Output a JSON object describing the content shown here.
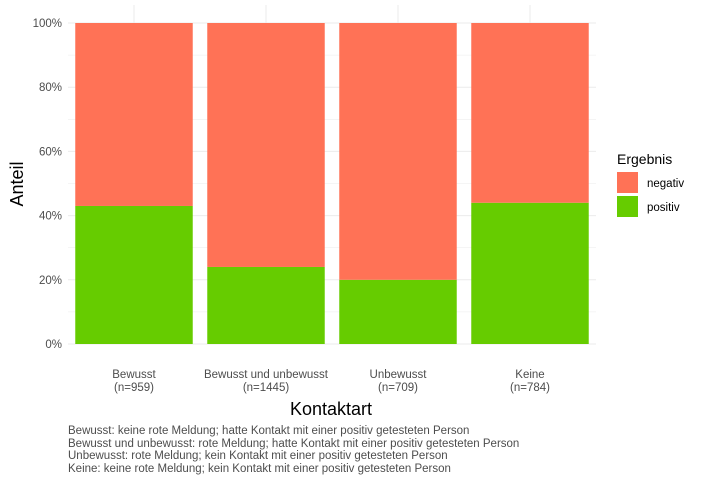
{
  "chart_data": {
    "type": "bar",
    "stacked": true,
    "categories": [
      "Bewusst\n(n=959)",
      "Bewusst und unbewusst\n(n=1445)",
      "Unbewusst\n(n=709)",
      "Keine\n(n=784)"
    ],
    "series": [
      {
        "name": "positiv",
        "color": "#66CC00",
        "values": [
          0.43,
          0.24,
          0.2,
          0.44
        ]
      },
      {
        "name": "negativ",
        "color": "#FF7256",
        "values": [
          0.57,
          0.76,
          0.8,
          0.56
        ]
      }
    ],
    "xlabel": "Kontaktart",
    "ylabel": "Anteil",
    "ylim": [
      0,
      1
    ],
    "yticks": [
      "0%",
      "20%",
      "40%",
      "60%",
      "80%",
      "100%"
    ],
    "grid": true,
    "legend": {
      "title": "Ergebnis",
      "position": "right",
      "entries": [
        "negativ",
        "positiv"
      ]
    }
  },
  "caption": [
    "Bewusst: keine rote Meldung; hatte Kontakt mit einer positiv getesteten Person",
    "Bewusst und unbewusst: rote Meldung; hatte Kontakt mit einer positiv getesteten Person",
    "Unbewusst: rote Meldung; kein Kontakt mit einer positiv getesteten Person",
    "Keine: keine rote Meldung; kein Kontakt mit einer positiv getesteten Person"
  ]
}
